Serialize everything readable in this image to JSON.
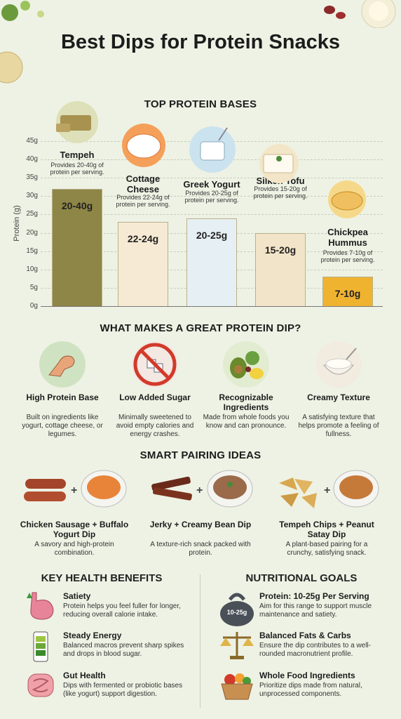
{
  "title": "Best Dips for Protein Snacks",
  "protein_section": {
    "title": "TOP PROTEIN BASES",
    "ylabel": "Protein (g)",
    "yticks": [
      "0g",
      "5g",
      "10g",
      "15g",
      "20g",
      "25g",
      "30g",
      "35g",
      "40g",
      "45g"
    ],
    "bars": [
      {
        "name": "Tempeh",
        "desc": "Provides 20-40g of protein per serving.",
        "value_label": "20-40g"
      },
      {
        "name": "Cottage Cheese",
        "desc": "Provides 22-24g of protein per serving.",
        "value_label": "22-24g"
      },
      {
        "name": "Greek Yogurt",
        "desc": "Provides 20-25g of protein per serving.",
        "value_label": "20-25g"
      },
      {
        "name": "Silken Tofu",
        "desc": "Provides 15-20g of protein per serving.",
        "value_label": "15-20g"
      },
      {
        "name": "Chickpea Hummus",
        "desc": "Provides 7-10g of protein per serving.",
        "value_label": "7-10g"
      }
    ]
  },
  "chart_data": {
    "type": "bar",
    "title": "TOP PROTEIN BASES",
    "ylabel": "Protein (g)",
    "ylim": [
      0,
      45
    ],
    "categories": [
      "Tempeh",
      "Cottage Cheese",
      "Greek Yogurt",
      "Silken Tofu",
      "Chickpea Hummus"
    ],
    "values": [
      32,
      23,
      24,
      20,
      8
    ],
    "colors": [
      "#8e8646",
      "#f6ead4",
      "#e6f0f4",
      "#f2e4c8",
      "#f0b330"
    ]
  },
  "qualities": {
    "title": "WHAT MAKES A GREAT PROTEIN DIP?",
    "items": [
      {
        "title": "High Protein Base",
        "desc": "Built on ingredients like yogurt, cottage cheese, or legumes.",
        "icon": "flexed-arm-icon"
      },
      {
        "title": "Low Added Sugar",
        "desc": "Minimally sweetened to avoid empty calories and energy crashes.",
        "icon": "no-sugar-icon"
      },
      {
        "title": "Recognizable Ingredients",
        "desc": "Made from whole foods you know and can pronounce.",
        "icon": "whole-foods-icon"
      },
      {
        "title": "Creamy Texture",
        "desc": "A satisfying texture that helps promote a feeling of fullness.",
        "icon": "creamy-bowl-icon"
      }
    ]
  },
  "pairings": {
    "title": "SMART PAIRING IDEAS",
    "plus": "+",
    "items": [
      {
        "title": "Chicken Sausage + Buffalo Yogurt Dip",
        "desc": "A savory and high-protein combination."
      },
      {
        "title": "Jerky + Creamy Bean Dip",
        "desc": "A texture-rich snack packed with protein."
      },
      {
        "title": "Tempeh Chips + Peanut Satay Dip",
        "desc": "A plant-based pairing for a crunchy, satisfying snack."
      }
    ]
  },
  "benefits": {
    "title": "KEY HEALTH BENEFITS",
    "items": [
      {
        "title": "Satiety",
        "desc": "Protein helps you feel fuller for longer, reducing overall calorie intake."
      },
      {
        "title": "Steady Energy",
        "desc": "Balanced macros prevent sharp spikes and drops in blood sugar."
      },
      {
        "title": "Gut Health",
        "desc": "Dips with fermented or probiotic bases (like yogurt) support digestion."
      }
    ]
  },
  "goals": {
    "title": "NUTRITIONAL GOALS",
    "weight_label": "10-25g",
    "items": [
      {
        "title": "Protein: 10-25g Per Serving",
        "desc": "Aim for this range to support muscle maintenance and satiety."
      },
      {
        "title": "Balanced Fats & Carbs",
        "desc": "Ensure the dip contributes to a well-rounded macronutrient profile."
      },
      {
        "title": "Whole Food Ingredients",
        "desc": "Prioritize dips made from natural, unprocessed components."
      }
    ]
  }
}
